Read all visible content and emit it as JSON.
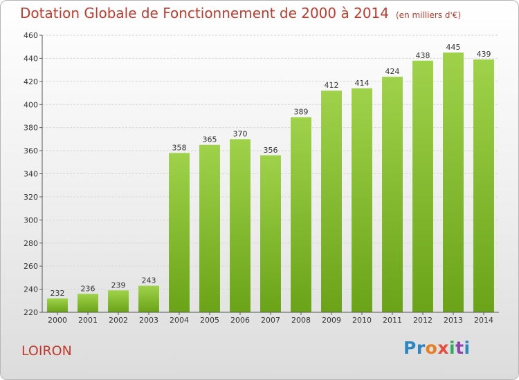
{
  "chart_data": {
    "type": "bar",
    "title": "Dotation Globale de Fonctionnement de 2000 à 2014",
    "subtitle": "(en milliers d'€)",
    "xlabel": "",
    "ylabel": "",
    "categories": [
      "2000",
      "2001",
      "2002",
      "2003",
      "2004",
      "2005",
      "2006",
      "2007",
      "2008",
      "2009",
      "2010",
      "2011",
      "2012",
      "2013",
      "2014"
    ],
    "values": [
      232,
      236,
      239,
      243,
      358,
      365,
      370,
      356,
      389,
      412,
      414,
      424,
      438,
      445,
      439
    ],
    "ylim": [
      220,
      460
    ],
    "yticks": [
      220,
      240,
      260,
      280,
      300,
      320,
      340,
      360,
      380,
      400,
      420,
      440,
      460
    ],
    "grid": true,
    "bar_color": "#8dc63f"
  },
  "footer": {
    "commune": "LOIRON",
    "logo_letters": [
      {
        "ch": "P",
        "color": "#2e86c1"
      },
      {
        "ch": "r",
        "color": "#2e86c1"
      },
      {
        "ch": "o",
        "color": "#e67e22"
      },
      {
        "ch": "x",
        "color": "#e74c3c"
      },
      {
        "ch": "i",
        "color": "#27ae60"
      },
      {
        "ch": "t",
        "color": "#8e44ad"
      },
      {
        "ch": "i",
        "color": "#2e86c1"
      }
    ]
  }
}
